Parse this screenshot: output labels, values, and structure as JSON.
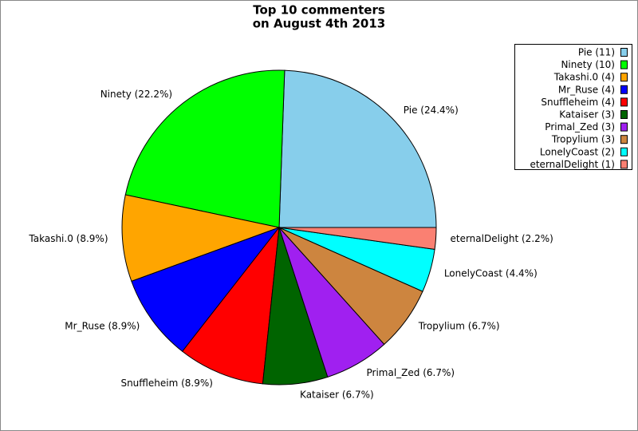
{
  "chart_data": {
    "type": "pie",
    "title": "Top 10 commenters",
    "subtitle": "on August 4th 2013",
    "categories": [
      "Pie",
      "Ninety",
      "Takashi.0",
      "Mr_Ruse",
      "Snuffleheim",
      "Kataiser",
      "Primal_Zed",
      "Tropylium",
      "LonelyCoast",
      "eternalDelight"
    ],
    "values": [
      11,
      10,
      4,
      4,
      4,
      3,
      3,
      3,
      2,
      1
    ],
    "legend_labels": [
      "Pie (11)",
      "Ninety (10)",
      "Takashi.0 (4)",
      "Mr_Ruse (4)",
      "Snuffleheim (4)",
      "Kataiser (3)",
      "Primal_Zed (3)",
      "Tropylium (3)",
      "LonelyCoast (2)",
      "eternalDelight (1)"
    ],
    "slice_labels": [
      "Pie (24.4%)",
      "Ninety (22.2%)",
      "Takashi.0 (8.9%)",
      "Mr_Ruse (8.9%)",
      "Snuffleheim (8.9%)",
      "Kataiser (6.7%)",
      "Primal_Zed (6.7%)",
      "Tropylium (6.7%)",
      "LonelyCoast (4.4%)",
      "eternalDelight (2.2%)"
    ],
    "colors": [
      "#87ceeb",
      "#00ff00",
      "#ffa500",
      "#0000ff",
      "#ff0000",
      "#006400",
      "#a020f0",
      "#cd853f",
      "#00ffff",
      "#fa8072"
    ]
  }
}
